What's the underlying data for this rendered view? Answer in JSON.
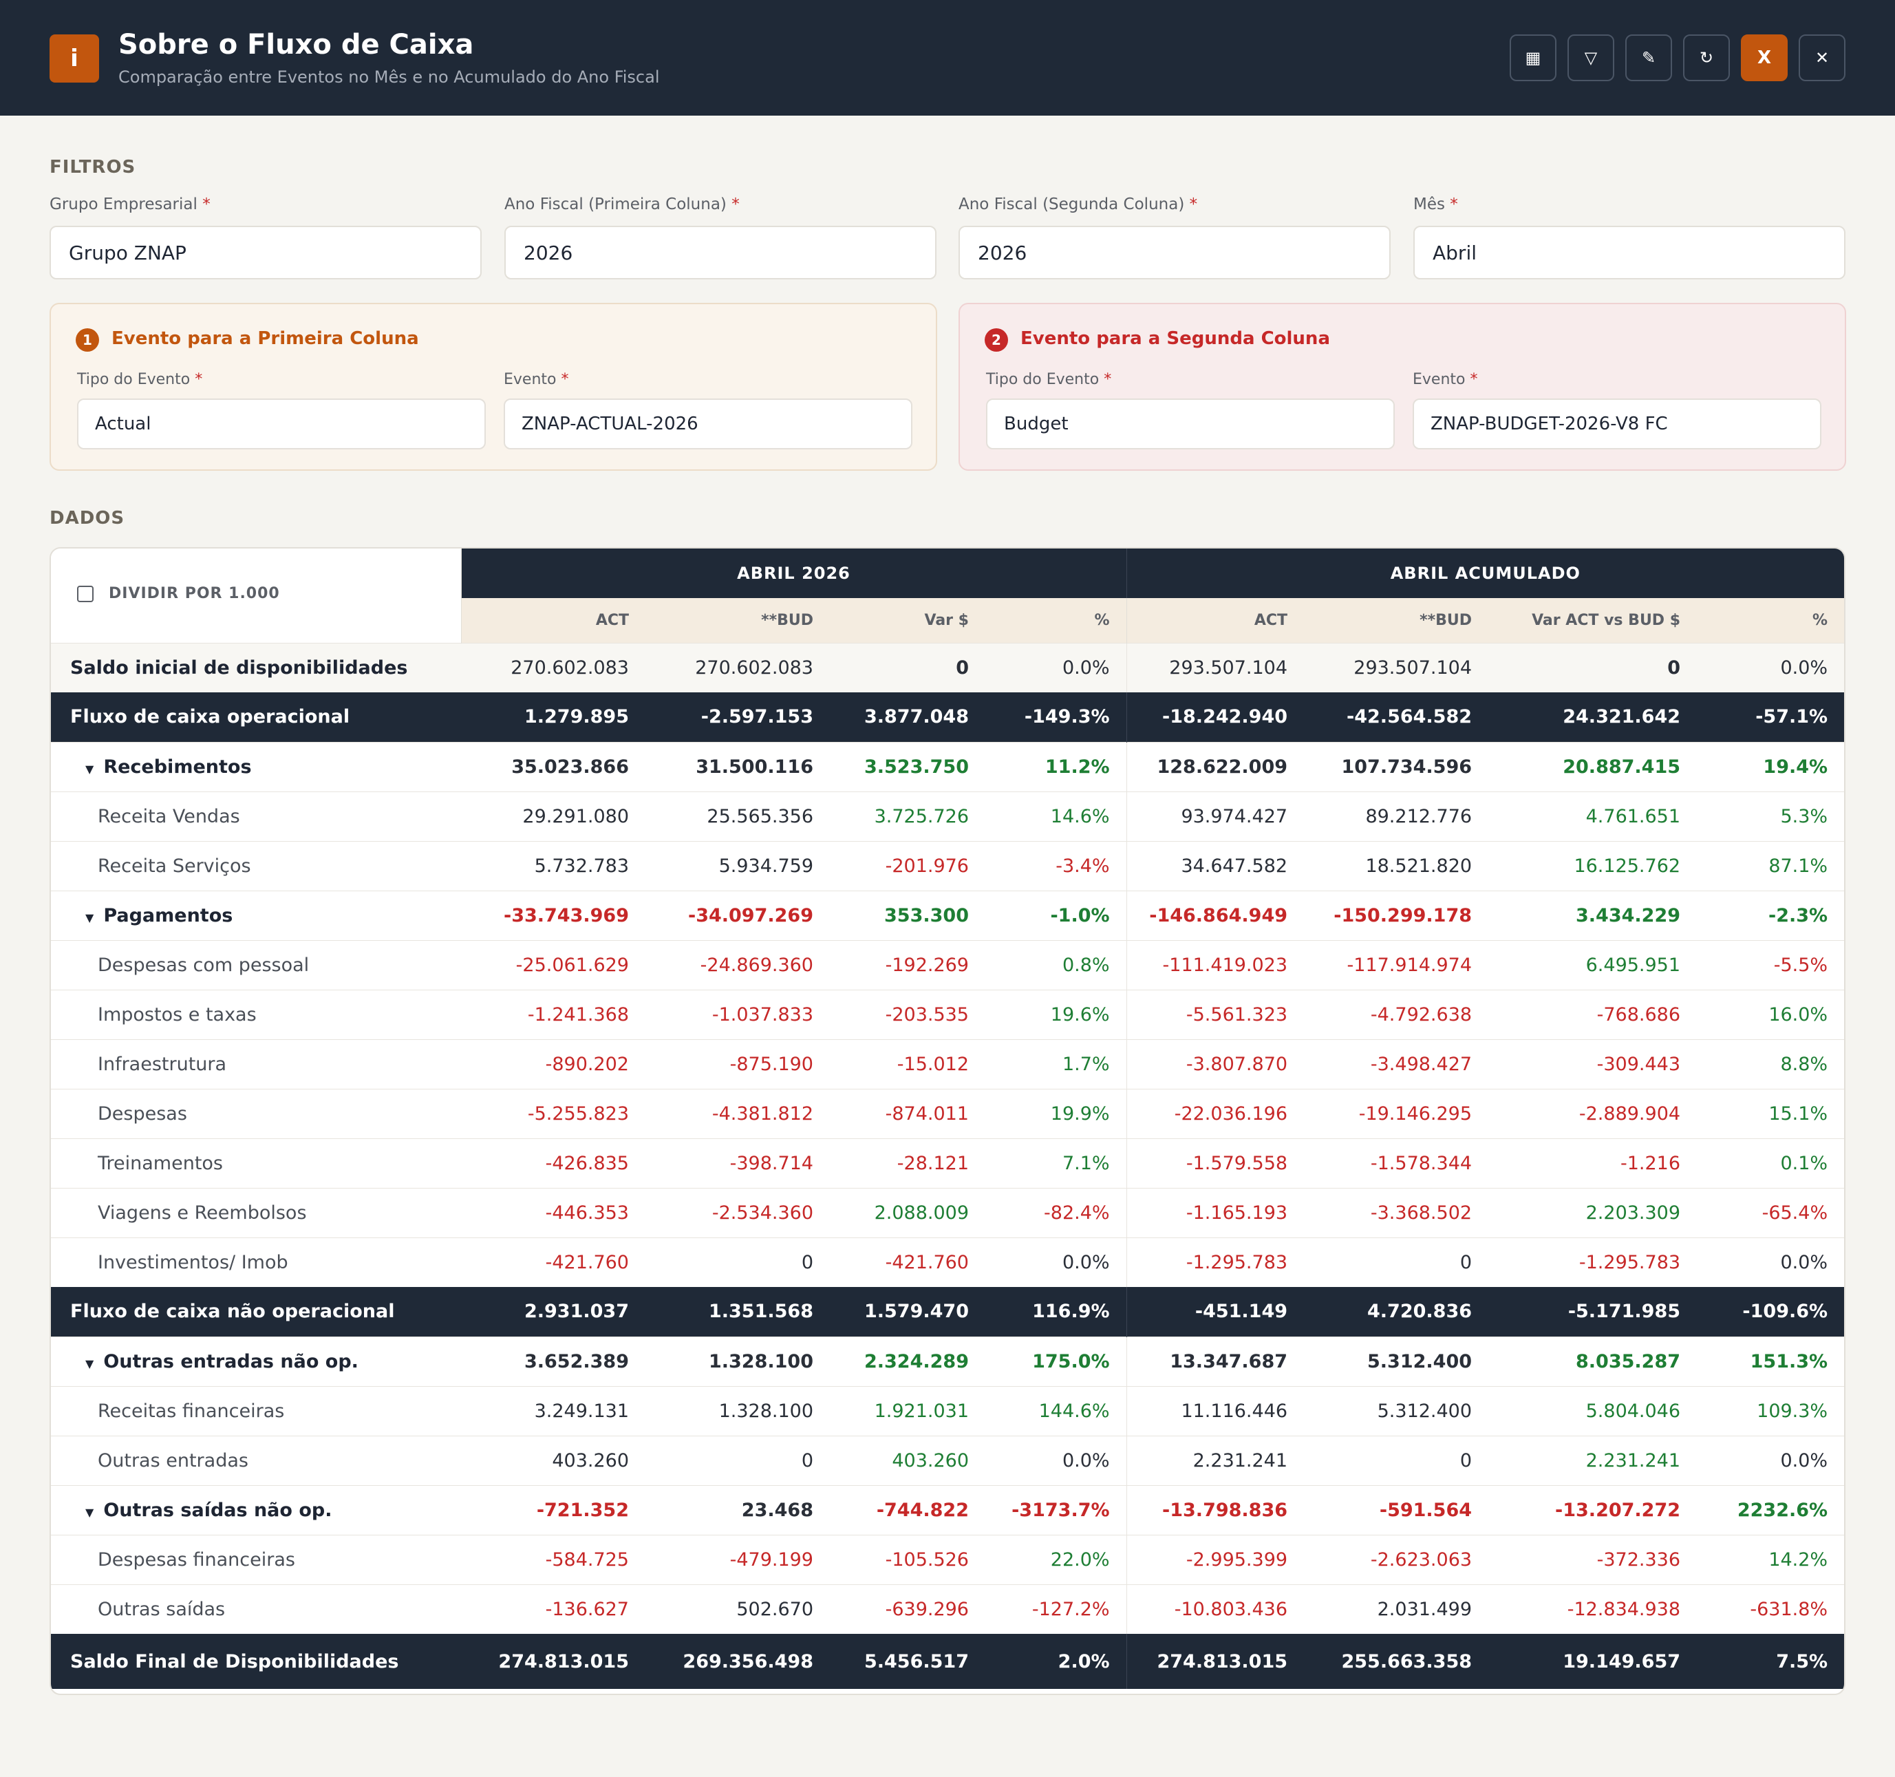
{
  "header": {
    "icon_letter": "i",
    "title": "Sobre o Fluxo de Caixa",
    "subtitle": "Comparação entre Eventos no Mês e no Acumulado do Ano Fiscal",
    "buttons": [
      {
        "name": "table-icon",
        "glyph": "▦"
      },
      {
        "name": "filter-icon",
        "glyph": "▽"
      },
      {
        "name": "pencil-icon",
        "glyph": "✎"
      },
      {
        "name": "refresh-icon",
        "glyph": "↻"
      },
      {
        "name": "excel-icon",
        "glyph": "X"
      },
      {
        "name": "close-icon",
        "glyph": "✕"
      }
    ]
  },
  "filters": {
    "section_label": "FILTROS",
    "required_mark": "*",
    "grupo": {
      "label": "Grupo Empresarial",
      "value": "Grupo ZNAP"
    },
    "ano1": {
      "label": "Ano Fiscal (Primeira Coluna)",
      "value": "2026"
    },
    "ano2": {
      "label": "Ano Fiscal (Segunda Coluna)",
      "value": "2026"
    },
    "mes": {
      "label": "Mês",
      "value": "Abril"
    },
    "event1": {
      "badge": "1",
      "title": "Evento para a Primeira Coluna",
      "tipo_label": "Tipo do Evento",
      "tipo_value": "Actual",
      "evento_label": "Evento",
      "evento_value": "ZNAP-ACTUAL-2026"
    },
    "event2": {
      "badge": "2",
      "title": "Evento para a Segunda Coluna",
      "tipo_label": "Tipo do Evento",
      "tipo_value": "Budget",
      "evento_label": "Evento",
      "evento_value": "ZNAP-BUDGET-2026-V8 FC"
    }
  },
  "data_section": {
    "label": "DADOS",
    "divide_label": "DIVIDIR POR 1.000",
    "group1": "ABRIL 2026",
    "group2": "ABRIL ACUMULADO",
    "cols": [
      "ACT",
      "**BUD",
      "Var $",
      "%",
      "ACT",
      "**BUD",
      "Var ACT vs BUD $",
      "%"
    ],
    "colors": {
      "negative": "#c62828",
      "positive": "#1e7e34",
      "header_bg": "#1f2937",
      "accent": "#c2560e"
    },
    "rows": [
      {
        "label": "Saldo inicial de disponibilidades",
        "type": "tinted",
        "v": [
          "270.602.083",
          "270.602.083",
          "0",
          "0.0%",
          "293.507.104",
          "293.507.104",
          "0",
          "0.0%"
        ],
        "c": [
          "",
          "",
          "b",
          "",
          "",
          "",
          "b",
          ""
        ]
      },
      {
        "label": "Fluxo de caixa operacional",
        "type": "dark",
        "v": [
          "1.279.895",
          "-2.597.153",
          "3.877.048",
          "-149.3%",
          "-18.242.940",
          "-42.564.582",
          "24.321.642",
          "-57.1%"
        ],
        "c": [
          "",
          "",
          "",
          "",
          "",
          "",
          "",
          ""
        ]
      },
      {
        "label": "Recebimentos",
        "type": "group",
        "v": [
          "35.023.866",
          "31.500.116",
          "3.523.750",
          "11.2%",
          "128.622.009",
          "107.734.596",
          "20.887.415",
          "19.4%"
        ],
        "c": [
          "",
          "",
          "p",
          "p",
          "",
          "",
          "p",
          "p"
        ]
      },
      {
        "label": "Receita Vendas",
        "type": "item",
        "v": [
          "29.291.080",
          "25.565.356",
          "3.725.726",
          "14.6%",
          "93.974.427",
          "89.212.776",
          "4.761.651",
          "5.3%"
        ],
        "c": [
          "",
          "",
          "p",
          "p",
          "",
          "",
          "p",
          "p"
        ]
      },
      {
        "label": "Receita Serviços",
        "type": "item",
        "v": [
          "5.732.783",
          "5.934.759",
          "-201.976",
          "-3.4%",
          "34.647.582",
          "18.521.820",
          "16.125.762",
          "87.1%"
        ],
        "c": [
          "",
          "",
          "n",
          "n",
          "",
          "",
          "p",
          "p"
        ]
      },
      {
        "label": "Pagamentos",
        "type": "group",
        "v": [
          "-33.743.969",
          "-34.097.269",
          "353.300",
          "-1.0%",
          "-146.864.949",
          "-150.299.178",
          "3.434.229",
          "-2.3%"
        ],
        "c": [
          "n",
          "n",
          "p",
          "p",
          "n",
          "n",
          "p",
          "p"
        ]
      },
      {
        "label": "Despesas com pessoal",
        "type": "item",
        "v": [
          "-25.061.629",
          "-24.869.360",
          "-192.269",
          "0.8%",
          "-111.419.023",
          "-117.914.974",
          "6.495.951",
          "-5.5%"
        ],
        "c": [
          "n",
          "n",
          "n",
          "p",
          "n",
          "n",
          "p",
          "n"
        ]
      },
      {
        "label": "Impostos e taxas",
        "type": "item",
        "v": [
          "-1.241.368",
          "-1.037.833",
          "-203.535",
          "19.6%",
          "-5.561.323",
          "-4.792.638",
          "-768.686",
          "16.0%"
        ],
        "c": [
          "n",
          "n",
          "n",
          "p",
          "n",
          "n",
          "n",
          "p"
        ]
      },
      {
        "label": "Infraestrutura",
        "type": "item",
        "v": [
          "-890.202",
          "-875.190",
          "-15.012",
          "1.7%",
          "-3.807.870",
          "-3.498.427",
          "-309.443",
          "8.8%"
        ],
        "c": [
          "n",
          "n",
          "n",
          "p",
          "n",
          "n",
          "n",
          "p"
        ]
      },
      {
        "label": "Despesas",
        "type": "item",
        "v": [
          "-5.255.823",
          "-4.381.812",
          "-874.011",
          "19.9%",
          "-22.036.196",
          "-19.146.295",
          "-2.889.904",
          "15.1%"
        ],
        "c": [
          "n",
          "n",
          "n",
          "p",
          "n",
          "n",
          "n",
          "p"
        ]
      },
      {
        "label": "Treinamentos",
        "type": "item",
        "v": [
          "-426.835",
          "-398.714",
          "-28.121",
          "7.1%",
          "-1.579.558",
          "-1.578.344",
          "-1.216",
          "0.1%"
        ],
        "c": [
          "n",
          "n",
          "n",
          "p",
          "n",
          "n",
          "n",
          "p"
        ]
      },
      {
        "label": "Viagens e Reembolsos",
        "type": "item",
        "v": [
          "-446.353",
          "-2.534.360",
          "2.088.009",
          "-82.4%",
          "-1.165.193",
          "-3.368.502",
          "2.203.309",
          "-65.4%"
        ],
        "c": [
          "n",
          "n",
          "p",
          "n",
          "n",
          "n",
          "p",
          "n"
        ]
      },
      {
        "label": "Investimentos/ Imob",
        "type": "item",
        "v": [
          "-421.760",
          "0",
          "-421.760",
          "0.0%",
          "-1.295.783",
          "0",
          "-1.295.783",
          "0.0%"
        ],
        "c": [
          "n",
          "",
          "n",
          "",
          "n",
          "",
          "n",
          ""
        ]
      },
      {
        "label": "Fluxo de caixa não operacional",
        "type": "dark",
        "v": [
          "2.931.037",
          "1.351.568",
          "1.579.470",
          "116.9%",
          "-451.149",
          "4.720.836",
          "-5.171.985",
          "-109.6%"
        ],
        "c": [
          "",
          "",
          "",
          "",
          "",
          "",
          "",
          ""
        ]
      },
      {
        "label": "Outras entradas não op.",
        "type": "group",
        "v": [
          "3.652.389",
          "1.328.100",
          "2.324.289",
          "175.0%",
          "13.347.687",
          "5.312.400",
          "8.035.287",
          "151.3%"
        ],
        "c": [
          "",
          "",
          "p",
          "p",
          "",
          "",
          "p",
          "p"
        ]
      },
      {
        "label": "Receitas financeiras",
        "type": "item",
        "v": [
          "3.249.131",
          "1.328.100",
          "1.921.031",
          "144.6%",
          "11.116.446",
          "5.312.400",
          "5.804.046",
          "109.3%"
        ],
        "c": [
          "",
          "",
          "p",
          "p",
          "",
          "",
          "p",
          "p"
        ]
      },
      {
        "label": "Outras entradas",
        "type": "item",
        "v": [
          "403.260",
          "0",
          "403.260",
          "0.0%",
          "2.231.241",
          "0",
          "2.231.241",
          "0.0%"
        ],
        "c": [
          "",
          "",
          "p",
          "",
          "",
          "",
          "p",
          ""
        ]
      },
      {
        "label": "Outras saídas não op.",
        "type": "group",
        "v": [
          "-721.352",
          "23.468",
          "-744.822",
          "-3173.7%",
          "-13.798.836",
          "-591.564",
          "-13.207.272",
          "2232.6%"
        ],
        "c": [
          "n",
          "",
          "n",
          "n",
          "n",
          "n",
          "n",
          "p"
        ]
      },
      {
        "label": "Despesas financeiras",
        "type": "item",
        "v": [
          "-584.725",
          "-479.199",
          "-105.526",
          "22.0%",
          "-2.995.399",
          "-2.623.063",
          "-372.336",
          "14.2%"
        ],
        "c": [
          "n",
          "n",
          "n",
          "p",
          "n",
          "n",
          "n",
          "p"
        ]
      },
      {
        "label": "Outras saídas",
        "type": "item",
        "v": [
          "-136.627",
          "502.670",
          "-639.296",
          "-127.2%",
          "-10.803.436",
          "2.031.499",
          "-12.834.938",
          "-631.8%"
        ],
        "c": [
          "n",
          "",
          "n",
          "n",
          "n",
          "",
          "n",
          "n"
        ]
      },
      {
        "label": "Saldo Final de Disponibilidades",
        "type": "final",
        "v": [
          "274.813.015",
          "269.356.498",
          "5.456.517",
          "2.0%",
          "274.813.015",
          "255.663.358",
          "19.149.657",
          "7.5%"
        ],
        "c": [
          "",
          "",
          "",
          "",
          "",
          "",
          "",
          ""
        ]
      }
    ]
  }
}
